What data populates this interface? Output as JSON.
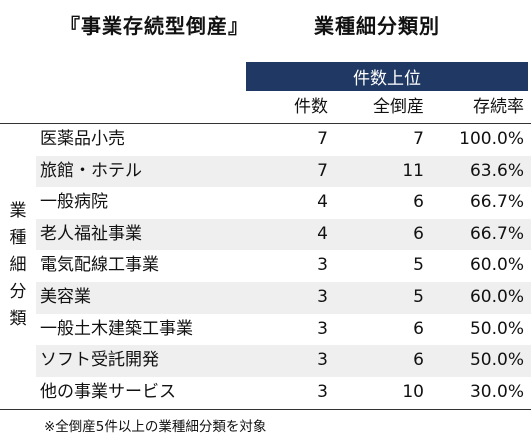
{
  "title": {
    "main": "『事業存続型倒産』",
    "sub": "業種細分類別"
  },
  "table": {
    "group_header": "件数上位",
    "columns": [
      "件数",
      "全倒産",
      "存続率"
    ],
    "side_label": [
      "業",
      "種",
      "細",
      "分",
      "類"
    ],
    "rows": [
      {
        "name": "医薬品小売",
        "count": "7",
        "total": "7",
        "rate": "100.0%"
      },
      {
        "name": "旅館・ホテル",
        "count": "7",
        "total": "11",
        "rate": "63.6%"
      },
      {
        "name": "一般病院",
        "count": "4",
        "total": "6",
        "rate": "66.7%"
      },
      {
        "name": "老人福祉事業",
        "count": "4",
        "total": "6",
        "rate": "66.7%"
      },
      {
        "name": "電気配線工事業",
        "count": "3",
        "total": "5",
        "rate": "60.0%"
      },
      {
        "name": "美容業",
        "count": "3",
        "total": "5",
        "rate": "60.0%"
      },
      {
        "name": "一般土木建築工事業",
        "count": "3",
        "total": "6",
        "rate": "50.0%"
      },
      {
        "name": "ソフト受託開発",
        "count": "3",
        "total": "6",
        "rate": "50.0%"
      },
      {
        "name": "他の事業サービス",
        "count": "3",
        "total": "10",
        "rate": "30.0%"
      }
    ]
  },
  "footnote": "※全倒産5件以上の業種細分類を対象",
  "colors": {
    "header_band": "#1f3864",
    "alt_row": "#efefef"
  }
}
